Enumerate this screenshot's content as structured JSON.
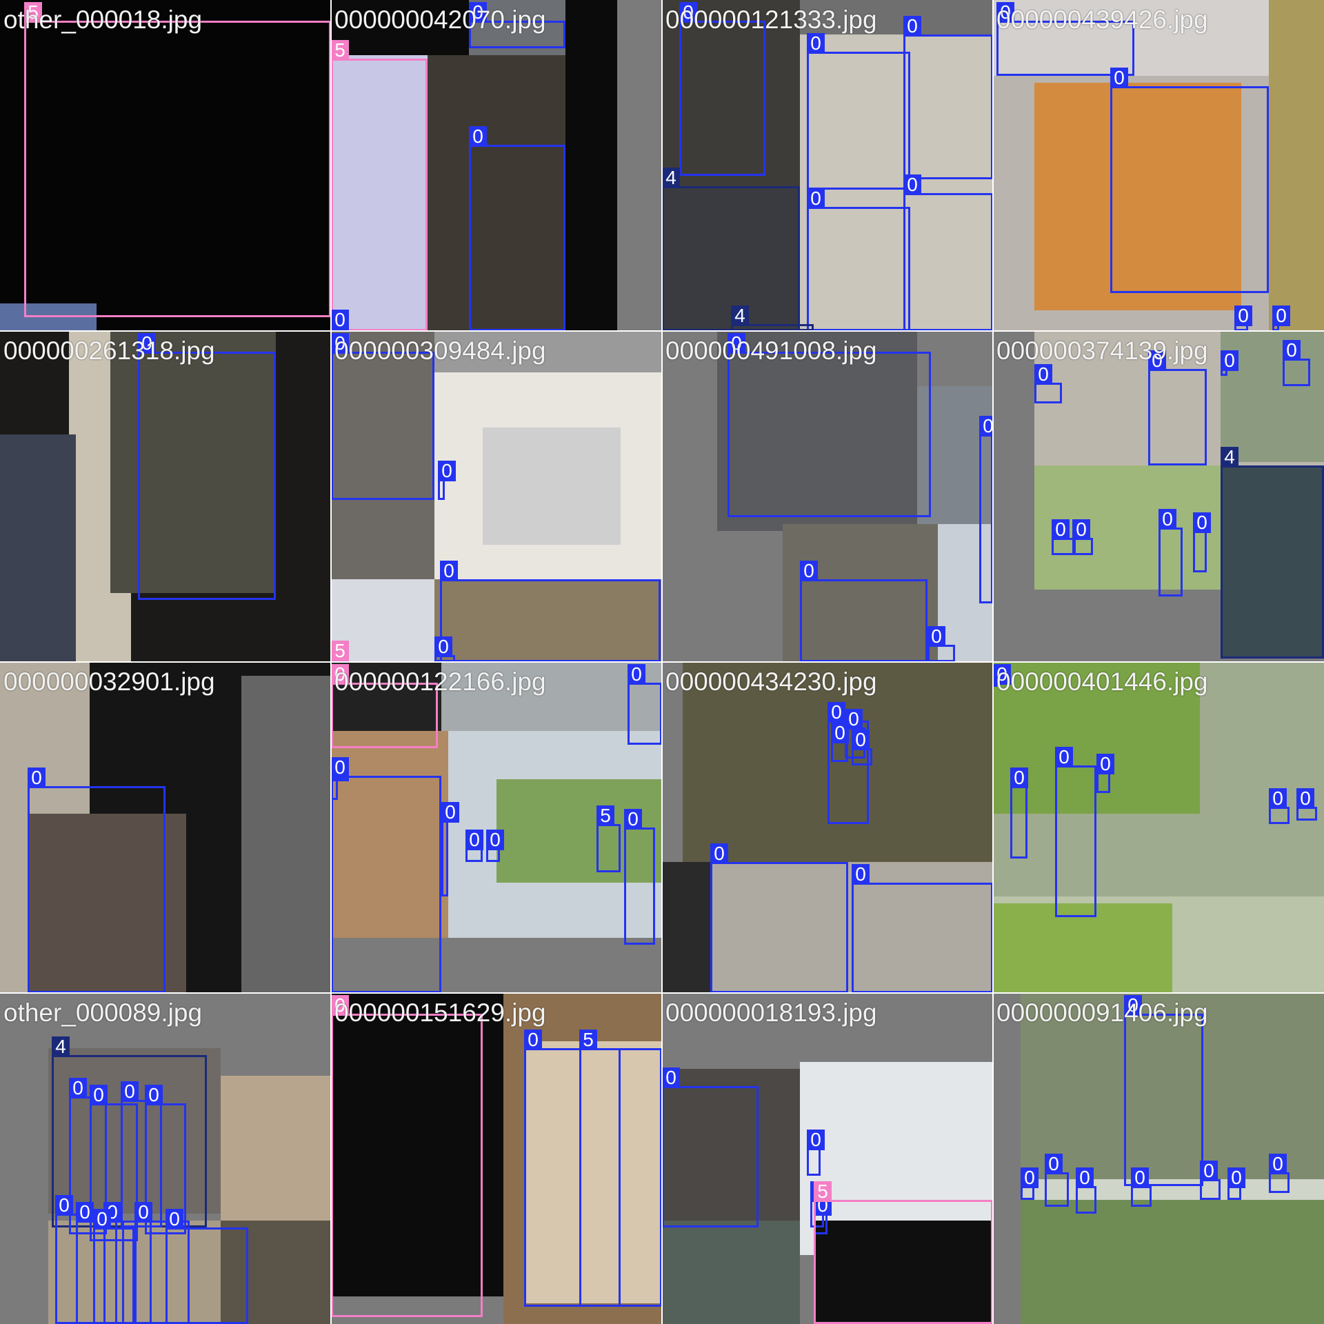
{
  "colors": {
    "class_0": "#2433f0",
    "class_4": "#1b2a78",
    "class_5": "#f47fc6",
    "tile_background": "#7b7b7b",
    "label_text": "#ffffff"
  },
  "tiles": [
    {
      "file": "other_000018.jpg",
      "labels": [
        "5"
      ]
    },
    {
      "file": "000000042070.jpg",
      "labels": [
        "0",
        "5",
        "0",
        "0"
      ]
    },
    {
      "file": "000000121333.jpg",
      "labels": [
        "0",
        "0",
        "0",
        "0",
        "0",
        "4",
        "4"
      ]
    },
    {
      "file": "000000439426.jpg",
      "labels": [
        "0",
        "0",
        "0",
        "0"
      ]
    },
    {
      "file": "000000261318.jpg",
      "labels": [
        "0"
      ]
    },
    {
      "file": "000000309484.jpg",
      "labels": [
        "0",
        "0",
        "5",
        "0",
        "0"
      ]
    },
    {
      "file": "000000491008.jpg",
      "labels": [
        "0",
        "0",
        "0",
        "0"
      ]
    },
    {
      "file": "000000374139.jpg",
      "labels": [
        "0",
        "0",
        "0",
        "0",
        "4",
        "0",
        "0",
        "0",
        "0"
      ]
    },
    {
      "file": "000000032901.jpg",
      "labels": [
        "0"
      ]
    },
    {
      "file": "000000122166.jpg",
      "labels": [
        "0",
        "0",
        "0",
        "0",
        "0",
        "0",
        "0",
        "0",
        "5"
      ]
    },
    {
      "file": "000000434230.jpg",
      "labels": [
        "0",
        "0",
        "0",
        "0",
        "0",
        "0"
      ]
    },
    {
      "file": "000000401446.jpg",
      "labels": [
        "0",
        "0",
        "0",
        "0",
        "0",
        "0"
      ]
    },
    {
      "file": "other_000089.jpg",
      "labels": [
        "4",
        "0",
        "0",
        "0",
        "0",
        "0",
        "0",
        "0",
        "0",
        "0",
        "0"
      ]
    },
    {
      "file": "000000151629.jpg",
      "labels": [
        "0",
        "0",
        "5"
      ]
    },
    {
      "file": "000000018193.jpg",
      "labels": [
        "0",
        "0",
        "0",
        "0",
        "5"
      ]
    },
    {
      "file": "000000091406.jpg",
      "labels": [
        "0",
        "0",
        "0",
        "0",
        "0",
        "0",
        "0",
        "0"
      ]
    }
  ]
}
